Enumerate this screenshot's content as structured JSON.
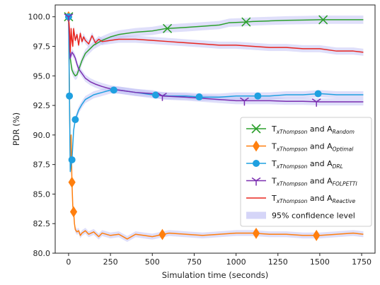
{
  "chart_data": {
    "type": "line",
    "xlabel": "Simulation time (seconds)",
    "ylabel": "PDR (%)",
    "xlim": [
      -80,
      1830
    ],
    "ylim": [
      80,
      101
    ],
    "xticks": [
      0,
      250,
      500,
      750,
      1000,
      1250,
      1500,
      1750
    ],
    "xtick_labels": [
      "0",
      "250",
      "500",
      "750",
      "1000",
      "1250",
      "1500",
      "1750"
    ],
    "yticks": [
      80.0,
      82.5,
      85.0,
      87.5,
      90.0,
      92.5,
      95.0,
      97.5,
      100.0
    ],
    "ytick_labels": [
      "80.0",
      "82.5",
      "85.0",
      "87.5",
      "90.0",
      "92.5",
      "95.0",
      "97.5",
      "100.0"
    ],
    "grid": false,
    "legend_position": "center-right",
    "confidence_label": "95% confidence level",
    "series": [
      {
        "key": "random",
        "legend_base": "T",
        "legend_base_sub": "xThompson",
        "legend_and": " and ",
        "legend_agent": "A",
        "legend_agent_sub": "Random",
        "color": "#2ca02c",
        "marker": "x",
        "band": 0.35,
        "x": [
          0,
          10,
          20,
          30,
          40,
          50,
          60,
          80,
          100,
          150,
          200,
          250,
          300,
          400,
          500,
          580,
          700,
          800,
          900,
          960,
          1050,
          1100,
          1200,
          1300,
          1400,
          1500,
          1600,
          1700,
          1760
        ],
        "y": [
          100.0,
          96.5,
          95.5,
          95.2,
          95.0,
          95.1,
          95.5,
          96.3,
          96.9,
          97.6,
          98.0,
          98.3,
          98.5,
          98.7,
          98.8,
          99.0,
          99.1,
          99.2,
          99.3,
          99.5,
          99.55,
          99.6,
          99.65,
          99.7,
          99.72,
          99.75,
          99.75,
          99.75,
          99.75
        ],
        "marker_x": [
          0,
          590,
          1060,
          1520
        ]
      },
      {
        "key": "optimal",
        "legend_base": "T",
        "legend_base_sub": "xThompson",
        "legend_and": " and ",
        "legend_agent": "A",
        "legend_agent_sub": "Optimal",
        "color": "#ff7f0e",
        "marker": "diamond",
        "band": 0.25,
        "x": [
          0,
          5,
          10,
          15,
          20,
          25,
          30,
          35,
          40,
          50,
          60,
          70,
          80,
          100,
          120,
          150,
          180,
          200,
          250,
          300,
          350,
          400,
          450,
          500,
          600,
          700,
          800,
          900,
          1000,
          1100,
          1200,
          1300,
          1400,
          1500,
          1600,
          1700,
          1760
        ],
        "y": [
          100.0,
          94.0,
          87.5,
          90.0,
          86.0,
          84.0,
          83.5,
          82.5,
          82.0,
          81.8,
          81.9,
          81.5,
          81.7,
          81.9,
          81.6,
          81.8,
          81.4,
          81.7,
          81.5,
          81.6,
          81.2,
          81.6,
          81.5,
          81.4,
          81.7,
          81.6,
          81.5,
          81.6,
          81.7,
          81.7,
          81.6,
          81.6,
          81.5,
          81.5,
          81.6,
          81.7,
          81.6
        ],
        "marker_x": [
          0,
          20,
          30,
          560,
          1120,
          1480
        ]
      },
      {
        "key": "drl",
        "legend_base": "T",
        "legend_base_sub": "xThompson",
        "legend_and": " and ",
        "legend_agent": "A",
        "legend_agent_sub": "DRL",
        "color": "#1fa0e0",
        "marker": "circle",
        "band": 0.3,
        "x": [
          0,
          5,
          10,
          20,
          30,
          40,
          60,
          80,
          100,
          150,
          200,
          250,
          300,
          400,
          500,
          600,
          700,
          800,
          900,
          1000,
          1100,
          1200,
          1300,
          1400,
          1500,
          1600,
          1700,
          1760
        ],
        "y": [
          100.0,
          93.3,
          86.9,
          87.9,
          90.4,
          91.3,
          92.1,
          92.6,
          93.0,
          93.4,
          93.6,
          93.8,
          93.8,
          93.6,
          93.4,
          93.3,
          93.3,
          93.2,
          93.2,
          93.3,
          93.3,
          93.3,
          93.4,
          93.4,
          93.5,
          93.4,
          93.4,
          93.4
        ],
        "marker_x": [
          0,
          5,
          20,
          40,
          270,
          520,
          780,
          1130,
          1490
        ]
      },
      {
        "key": "folpetti",
        "legend_base": "T",
        "legend_base_sub": "xThompson",
        "legend_and": " and ",
        "legend_agent": "A",
        "legend_agent_sub": "FOLPETTI",
        "color": "#7b2fb0",
        "marker": "tri_down",
        "band": 0.3,
        "x": [
          0,
          10,
          20,
          30,
          40,
          50,
          60,
          80,
          100,
          130,
          160,
          200,
          250,
          300,
          400,
          500,
          560,
          700,
          800,
          900,
          1000,
          1100,
          1200,
          1300,
          1400,
          1500,
          1600,
          1700,
          1760
        ],
        "y": [
          100.0,
          96.5,
          97.0,
          96.8,
          96.5,
          96.0,
          95.6,
          95.2,
          94.8,
          94.5,
          94.3,
          94.1,
          93.9,
          93.8,
          93.6,
          93.5,
          93.3,
          93.2,
          93.1,
          93.0,
          92.9,
          92.9,
          92.9,
          92.85,
          92.85,
          92.8,
          92.8,
          92.8,
          92.8
        ],
        "marker_x": [
          0,
          560,
          1050,
          1480
        ]
      },
      {
        "key": "reactive",
        "legend_base": "T",
        "legend_base_sub": "xThompson",
        "legend_and": " and ",
        "legend_agent": "A",
        "legend_agent_sub": "Reactive",
        "color": "#e8261f",
        "marker": "none",
        "band": 0.3,
        "x": [
          0,
          5,
          10,
          15,
          20,
          25,
          30,
          40,
          50,
          60,
          70,
          80,
          90,
          100,
          120,
          140,
          160,
          180,
          200,
          250,
          300,
          400,
          500,
          600,
          700,
          800,
          900,
          1000,
          1100,
          1200,
          1300,
          1400,
          1500,
          1600,
          1700,
          1760
        ],
        "y": [
          100.0,
          99.0,
          97.0,
          99.0,
          98.0,
          97.5,
          99.0,
          98.0,
          98.5,
          97.6,
          98.6,
          97.9,
          98.3,
          98.0,
          97.7,
          98.4,
          97.8,
          98.1,
          97.9,
          98.0,
          98.1,
          98.1,
          98.0,
          97.9,
          97.8,
          97.7,
          97.6,
          97.6,
          97.5,
          97.4,
          97.4,
          97.3,
          97.3,
          97.1,
          97.1,
          97.0
        ],
        "marker_x": []
      }
    ]
  }
}
